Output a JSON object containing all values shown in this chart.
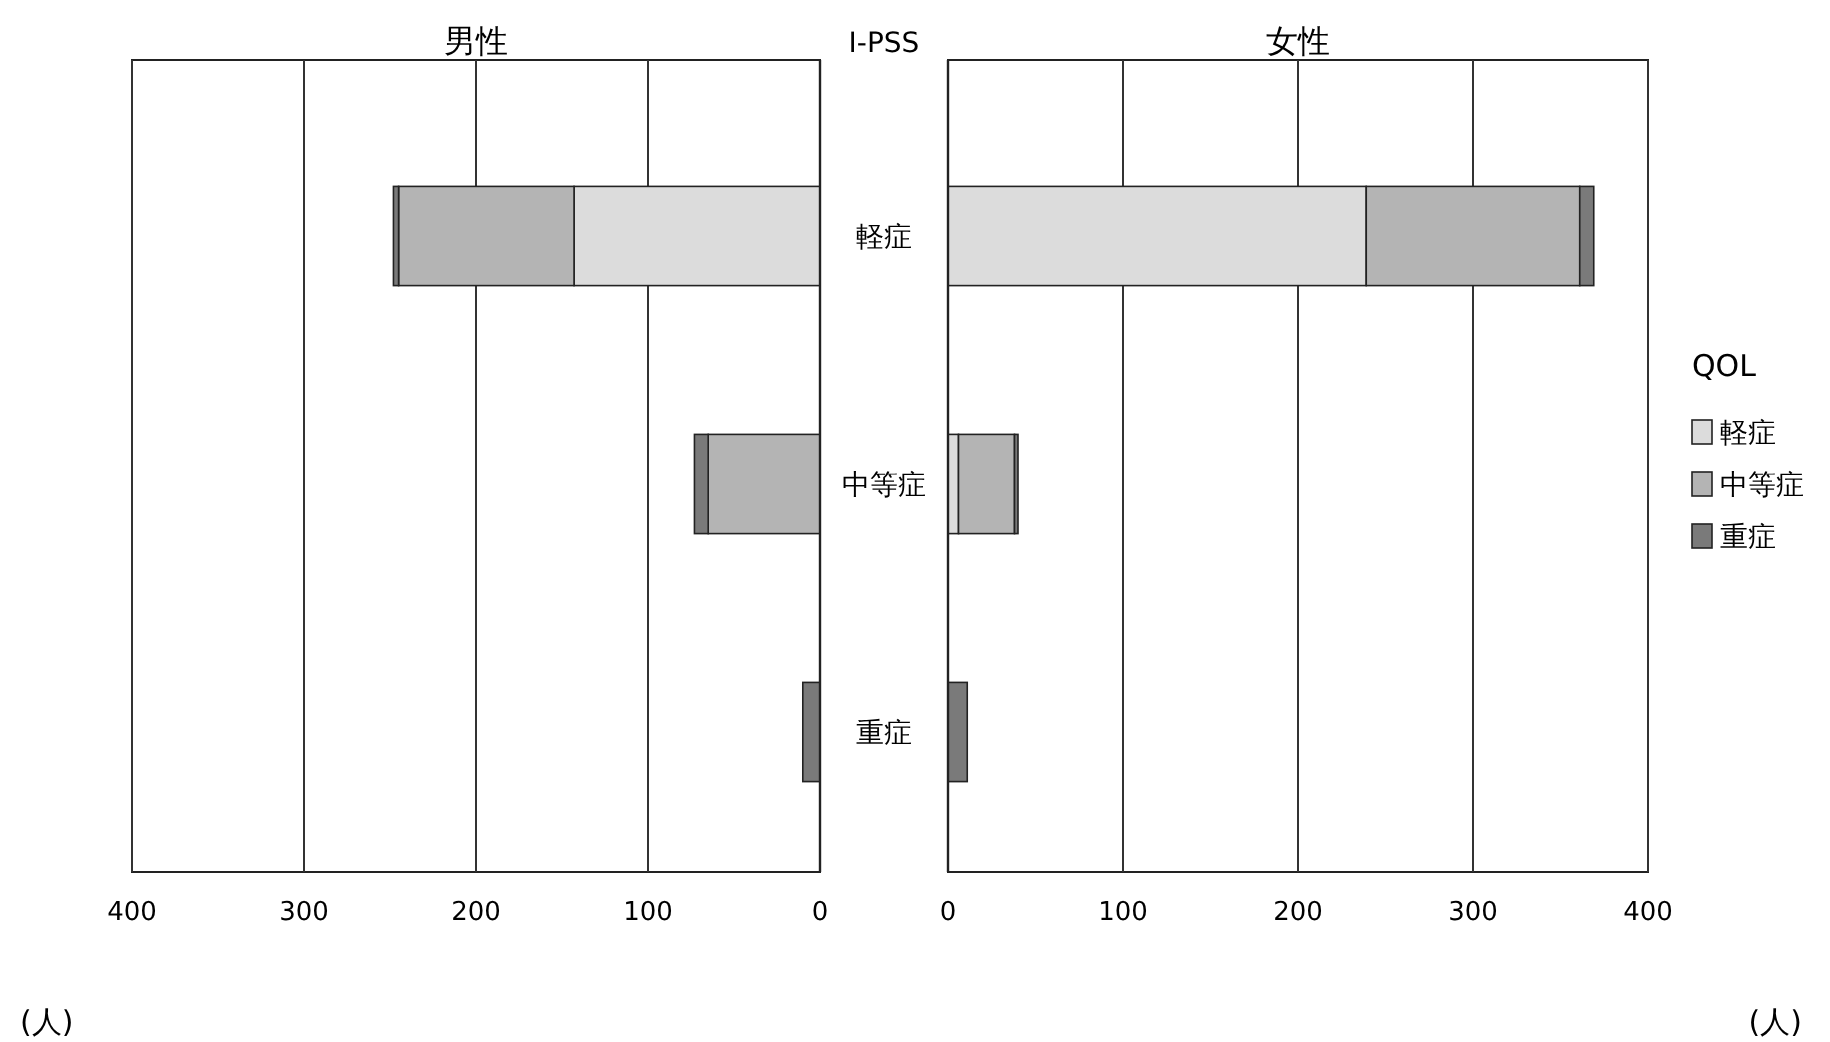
{
  "chart_data": [
    {
      "type": "bar",
      "orientation": "horizontal",
      "stacked": true,
      "title": "男性",
      "ylabel": "I-PSS",
      "categories": [
        "軽症",
        "中等症",
        "重症"
      ],
      "xlim": [
        400,
        0
      ],
      "xticks": [
        400,
        300,
        200,
        100,
        0
      ],
      "grid": "x",
      "legend": false,
      "annotations": [
        "(人)"
      ],
      "series": [
        {
          "color": "#dcdcdc",
          "values": [
            143,
            0,
            0
          ]
        },
        {
          "color": "#b4b4b4",
          "values": [
            102,
            65,
            0
          ]
        },
        {
          "color": "#7a7a7a",
          "values": [
            3,
            8,
            10
          ]
        }
      ]
    },
    {
      "type": "bar",
      "orientation": "horizontal",
      "stacked": true,
      "title": "女性",
      "categories": [
        null,
        null,
        null
      ],
      "xlim": [
        0,
        400
      ],
      "xticks": [
        0,
        100,
        200,
        300,
        400
      ],
      "grid": "x",
      "legend": "right",
      "legend_title": "QOL",
      "tick_labels": "x",
      "annotations": [
        "(人)"
      ],
      "series": [
        {
          "name": "軽症",
          "color": "#dcdcdc",
          "values": [
            239,
            6,
            0
          ]
        },
        {
          "name": "中等症",
          "color": "#b4b4b4",
          "values": [
            122,
            32,
            0
          ]
        },
        {
          "name": "重症",
          "color": "#7a7a7a",
          "values": [
            8,
            2,
            11
          ]
        }
      ]
    }
  ]
}
